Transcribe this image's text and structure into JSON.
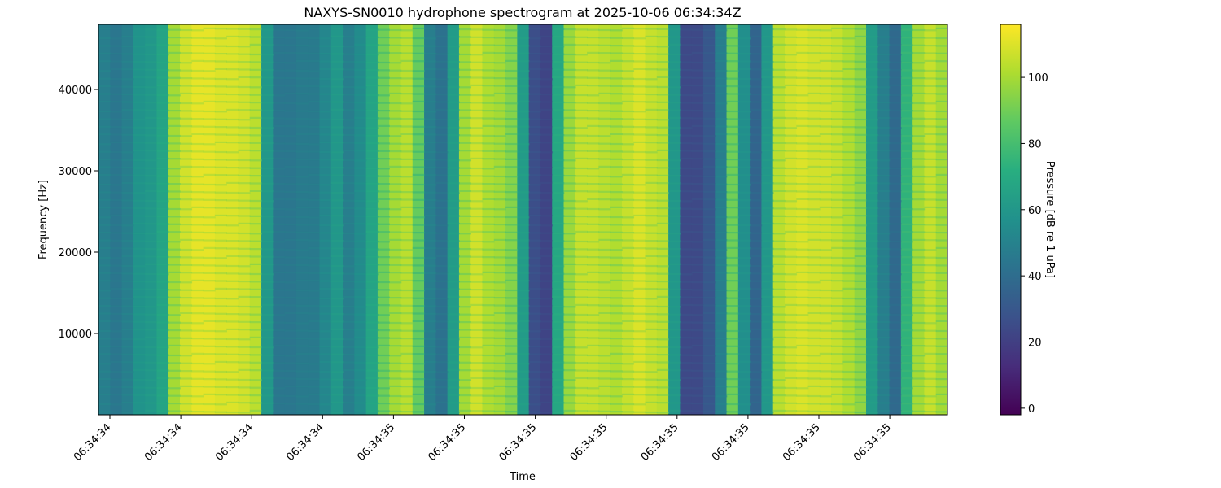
{
  "chart_data": {
    "type": "heatmap",
    "title": "NAXYS-SN0010 hydrophone spectrogram at 2025-10-06 06:34:34Z",
    "xlabel": "Time",
    "ylabel": "Frequency [Hz]",
    "colorbar_label": "Pressure [dB re 1 uPa]",
    "colormap": "viridis",
    "clim": [
      -2,
      116
    ],
    "ylim": [
      0,
      48000
    ],
    "x_tick_labels": [
      "06:34:34",
      "06:34:34",
      "06:34:34",
      "06:34:34",
      "06:34:35",
      "06:34:35",
      "06:34:35",
      "06:34:35",
      "06:34:35",
      "06:34:35",
      "06:34:35",
      "06:34:35"
    ],
    "y_ticks": [
      10000,
      20000,
      30000,
      40000
    ],
    "y_tick_labels": [
      "10000",
      "20000",
      "30000",
      "40000"
    ],
    "colorbar_ticks": [
      0,
      20,
      40,
      60,
      80,
      100
    ],
    "colorbar_tick_labels": [
      "0",
      "20",
      "40",
      "60",
      "80",
      "100"
    ],
    "time_column_levels_db": [
      48,
      44,
      48,
      58,
      60,
      66,
      100,
      108,
      112,
      112,
      110,
      110,
      108,
      104,
      60,
      44,
      44,
      46,
      46,
      52,
      60,
      48,
      54,
      66,
      90,
      100,
      104,
      88,
      48,
      42,
      62,
      100,
      108,
      102,
      100,
      94,
      62,
      26,
      22,
      68,
      98,
      106,
      106,
      104,
      102,
      106,
      110,
      106,
      104,
      60,
      24,
      24,
      30,
      48,
      90,
      56,
      36,
      60,
      104,
      108,
      110,
      108,
      108,
      106,
      102,
      96,
      62,
      48,
      38,
      74,
      100,
      106,
      100
    ]
  }
}
